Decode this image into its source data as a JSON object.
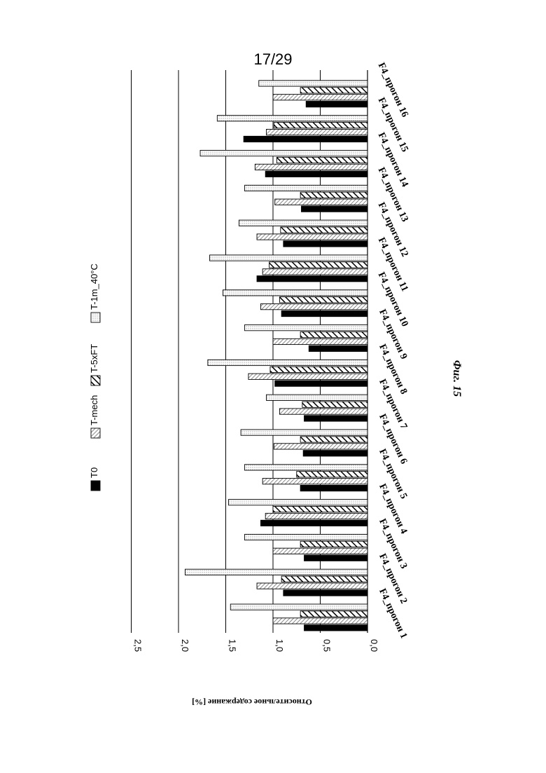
{
  "page": {
    "page_number": "17/29"
  },
  "figure": {
    "caption": "Фиг. 15"
  },
  "colors": {
    "T0": "#000000",
    "T-mech": "hatch-cross",
    "T-5xFT": "hatch-diagonal",
    "T-1m_40C": "dots"
  },
  "chart_data": {
    "type": "bar",
    "orientation": "horizontal-rotated",
    "title": "",
    "ylabel": "Относительное содержание [%]",
    "xlabel": "",
    "ylim": [
      0.0,
      2.5
    ],
    "yticks": [
      "0,0",
      "0,5",
      "1,0",
      "1,5",
      "2,0",
      "2,5"
    ],
    "grid": true,
    "legend_position": "top",
    "categories": [
      "F4_прогон 1",
      "F4_прогон 2",
      "F4_прогон 3",
      "F4_прогон 4",
      "F4_прогон 5",
      "F4_прогон 6",
      "F4_прогон 7",
      "F4_прогон 8",
      "F4_прогон 9",
      "F4_прогон 10",
      "F4_прогон 11",
      "F4_прогон 12",
      "F4_прогон 13",
      "F4_прогон 14",
      "F4_прогон 15",
      "F4_прогон 16"
    ],
    "series": [
      {
        "name": "T0",
        "values": [
          0.67,
          0.89,
          0.67,
          1.13,
          0.71,
          0.68,
          0.67,
          0.98,
          0.62,
          0.91,
          1.17,
          0.89,
          0.7,
          1.08,
          1.31,
          0.65
        ]
      },
      {
        "name": "T-mech",
        "values": [
          1.0,
          1.17,
          1.0,
          1.08,
          1.11,
          0.99,
          0.93,
          1.26,
          1.0,
          1.13,
          1.11,
          1.17,
          0.98,
          1.19,
          1.07,
          1.0
        ]
      },
      {
        "name": "T-5xFT",
        "values": [
          0.71,
          0.91,
          0.71,
          1.0,
          0.75,
          0.71,
          0.69,
          1.03,
          0.71,
          0.93,
          1.04,
          0.92,
          0.71,
          0.96,
          0.99,
          0.71
        ]
      },
      {
        "name": "T-1m_40°C",
        "values": [
          1.45,
          1.93,
          1.3,
          1.47,
          1.3,
          1.34,
          1.07,
          1.69,
          1.3,
          1.53,
          1.67,
          1.36,
          1.3,
          1.77,
          1.59,
          1.15
        ]
      }
    ]
  }
}
